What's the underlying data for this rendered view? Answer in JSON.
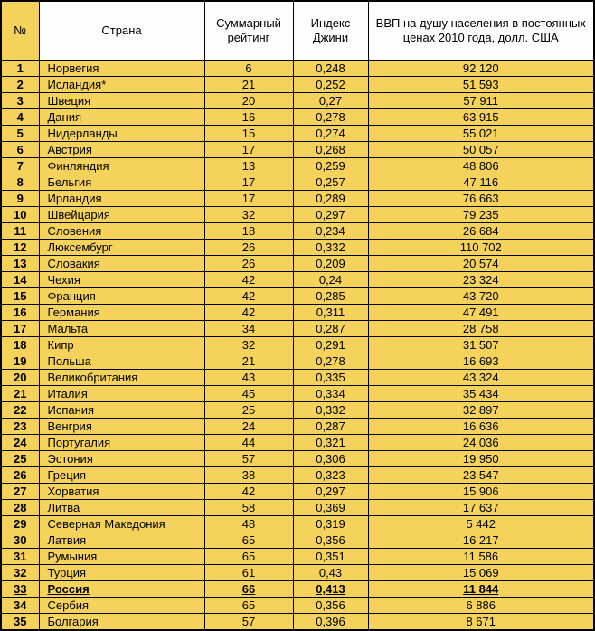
{
  "chart_data": {
    "type": "table",
    "title": "",
    "columns": [
      {
        "key": "rank",
        "label": "№"
      },
      {
        "key": "country",
        "label": "Страна"
      },
      {
        "key": "rating",
        "label": "Суммарный рейтинг"
      },
      {
        "key": "gini",
        "label": "Индекс Джини"
      },
      {
        "key": "gdp",
        "label": "ВВП на душу населения в постоянных ценах 2010 года, долл. США"
      }
    ],
    "highlighted_rank": "33",
    "rows": [
      {
        "rank": "1",
        "country": "Норвегия",
        "rating": "6",
        "gini": "0,248",
        "gdp": "92 120"
      },
      {
        "rank": "2",
        "country": "Исландия*",
        "rating": "21",
        "gini": "0,252",
        "gdp": "51 593"
      },
      {
        "rank": "3",
        "country": "Швеция",
        "rating": "20",
        "gini": "0,27",
        "gdp": "57 911"
      },
      {
        "rank": "4",
        "country": "Дания",
        "rating": "16",
        "gini": "0,278",
        "gdp": "63 915"
      },
      {
        "rank": "5",
        "country": "Нидерланды",
        "rating": "15",
        "gini": "0,274",
        "gdp": "55 021"
      },
      {
        "rank": "6",
        "country": "Австрия",
        "rating": "17",
        "gini": "0,268",
        "gdp": "50 057"
      },
      {
        "rank": "7",
        "country": "Финляндия",
        "rating": "13",
        "gini": "0,259",
        "gdp": "48 806"
      },
      {
        "rank": "8",
        "country": "Бельгия",
        "rating": "17",
        "gini": "0,257",
        "gdp": "47 116"
      },
      {
        "rank": "9",
        "country": "Ирландия",
        "rating": "17",
        "gini": "0,289",
        "gdp": "76 663"
      },
      {
        "rank": "10",
        "country": "Швейцария",
        "rating": "32",
        "gini": "0,297",
        "gdp": "79 235"
      },
      {
        "rank": "11",
        "country": "Словения",
        "rating": "18",
        "gini": "0,234",
        "gdp": "26 684"
      },
      {
        "rank": "12",
        "country": "Люксембург",
        "rating": "26",
        "gini": "0,332",
        "gdp": "110 702"
      },
      {
        "rank": "13",
        "country": "Словакия",
        "rating": "26",
        "gini": "0,209",
        "gdp": "20 574"
      },
      {
        "rank": "14",
        "country": "Чехия",
        "rating": "42",
        "gini": "0,24",
        "gdp": "23 324"
      },
      {
        "rank": "15",
        "country": "Франция",
        "rating": "42",
        "gini": "0,285",
        "gdp": "43 720"
      },
      {
        "rank": "16",
        "country": "Германия",
        "rating": "42",
        "gini": "0,311",
        "gdp": "47 491"
      },
      {
        "rank": "17",
        "country": "Мальта",
        "rating": "34",
        "gini": "0,287",
        "gdp": "28 758"
      },
      {
        "rank": "18",
        "country": "Кипр",
        "rating": "32",
        "gini": "0,291",
        "gdp": "31 507"
      },
      {
        "rank": "19",
        "country": "Польша",
        "rating": "21",
        "gini": "0,278",
        "gdp": "16 693"
      },
      {
        "rank": "20",
        "country": "Великобритания",
        "rating": "43",
        "gini": "0,335",
        "gdp": "43 324"
      },
      {
        "rank": "21",
        "country": "Италия",
        "rating": "45",
        "gini": "0,334",
        "gdp": "35 434"
      },
      {
        "rank": "22",
        "country": "Испания",
        "rating": "25",
        "gini": "0,332",
        "gdp": "32 897"
      },
      {
        "rank": "23",
        "country": "Венгрия",
        "rating": "24",
        "gini": "0,287",
        "gdp": "16 636"
      },
      {
        "rank": "24",
        "country": "Португалия",
        "rating": "44",
        "gini": "0,321",
        "gdp": "24 036"
      },
      {
        "rank": "25",
        "country": "Эстония",
        "rating": "57",
        "gini": "0,306",
        "gdp": "19 950"
      },
      {
        "rank": "26",
        "country": "Греция",
        "rating": "38",
        "gini": "0,323",
        "gdp": "23 547"
      },
      {
        "rank": "27",
        "country": "Хорватия",
        "rating": "42",
        "gini": "0,297",
        "gdp": "15 906"
      },
      {
        "rank": "28",
        "country": "Литва",
        "rating": "58",
        "gini": "0,369",
        "gdp": "17 637"
      },
      {
        "rank": "29",
        "country": "Северная Македония",
        "rating": "48",
        "gini": "0,319",
        "gdp": "5 442"
      },
      {
        "rank": "30",
        "country": "Латвия",
        "rating": "65",
        "gini": "0,356",
        "gdp": "16 217"
      },
      {
        "rank": "31",
        "country": "Румыния",
        "rating": "65",
        "gini": "0,351",
        "gdp": "11 586"
      },
      {
        "rank": "32",
        "country": "Турция",
        "rating": "61",
        "gini": "0,43",
        "gdp": "15 069"
      },
      {
        "rank": "33",
        "country": "Россия",
        "rating": "66",
        "gini": "0,413",
        "gdp": "11 844"
      },
      {
        "rank": "34",
        "country": "Сербия",
        "rating": "65",
        "gini": "0,356",
        "gdp": "6 886"
      },
      {
        "rank": "35",
        "country": "Болгария",
        "rating": "57",
        "gini": "0,396",
        "gdp": "8 671"
      }
    ]
  },
  "colors": {
    "table_background": "#F5D25C",
    "header_background": "#FDFDFD",
    "rank_header_background": "#F5D25C",
    "border": "#000000",
    "text": "#000000"
  }
}
